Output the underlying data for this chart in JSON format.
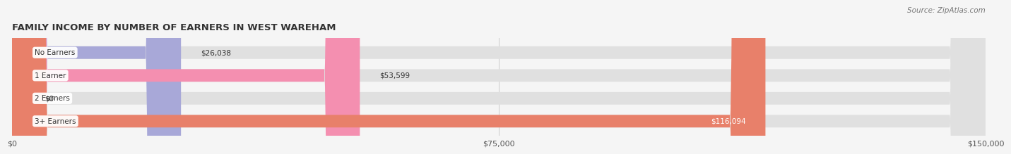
{
  "title": "FAMILY INCOME BY NUMBER OF EARNERS IN WEST WAREHAM",
  "source": "Source: ZipAtlas.com",
  "categories": [
    "No Earners",
    "1 Earner",
    "2 Earners",
    "3+ Earners"
  ],
  "values": [
    26038,
    53599,
    0,
    116094
  ],
  "bar_colors": [
    "#a8a8d8",
    "#f48fb0",
    "#f0c890",
    "#e8806a"
  ],
  "label_colors": [
    "#333333",
    "#333333",
    "#333333",
    "#ffffff"
  ],
  "bar_bg_color": "#e0e0e0",
  "xlim": [
    0,
    150000
  ],
  "xticks": [
    0,
    75000,
    150000
  ],
  "xtick_labels": [
    "$0",
    "$75,000",
    "$150,000"
  ],
  "fig_bg_color": "#f5f5f5",
  "bar_height": 0.55
}
